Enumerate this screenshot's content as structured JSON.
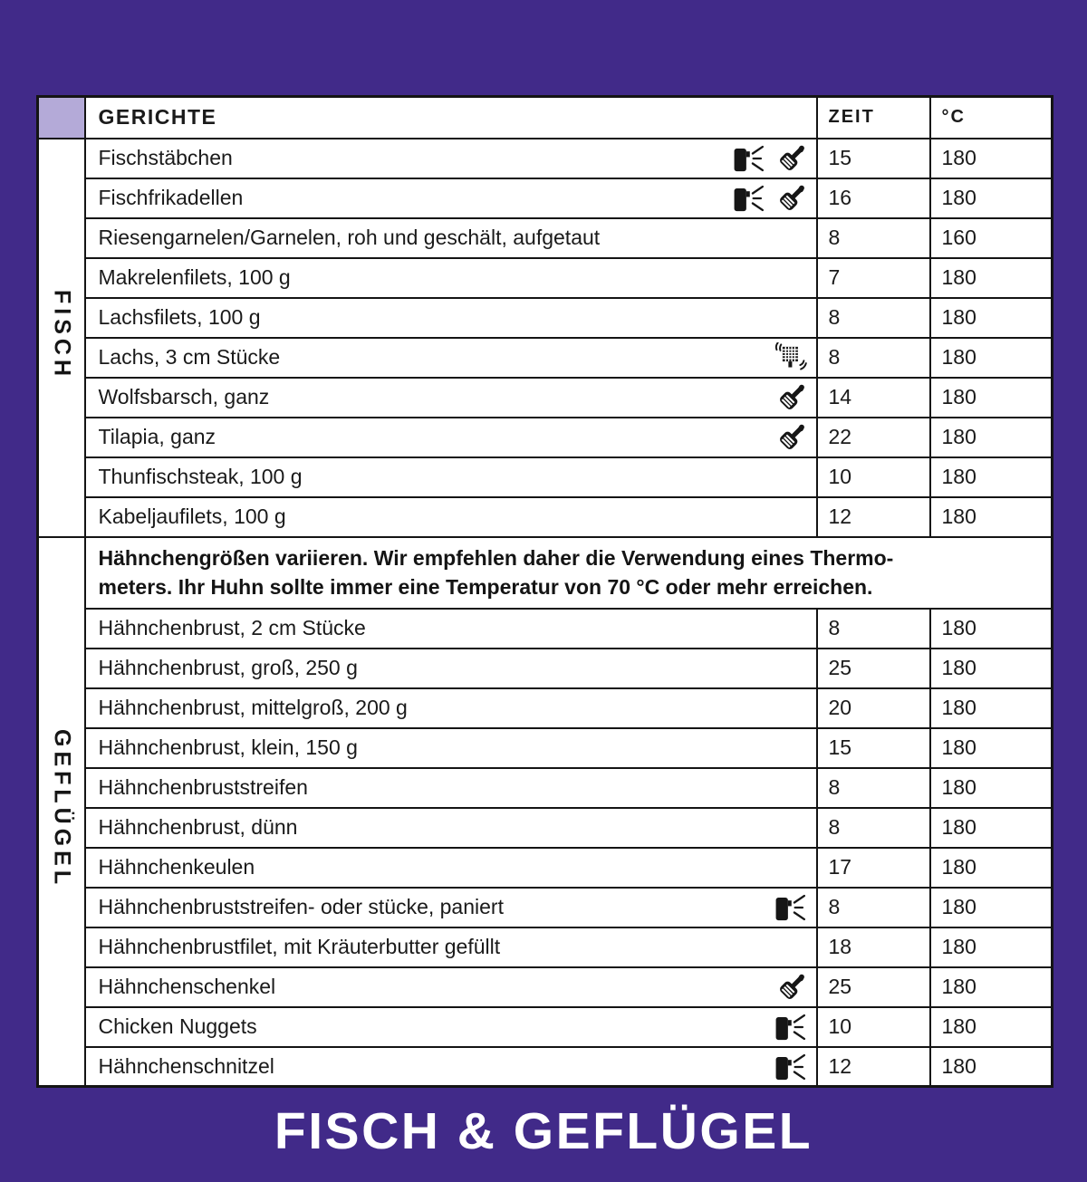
{
  "page": {
    "background_color": "#412a89",
    "title": "FISCH & GEFLÜGEL",
    "title_color": "#ffffff"
  },
  "table": {
    "border_color": "#141414",
    "header_bg": "#b4aad8",
    "row_bg": "#ffffff",
    "headers": {
      "dishes": "GERICHTE",
      "time": "ZEIT",
      "temp": "°C"
    },
    "sections": [
      {
        "label": "FISCH",
        "rows": [
          {
            "dish": "Fischstäbchen",
            "icons": [
              "oil-spray-icon",
              "spatula-icon"
            ],
            "time": "15",
            "temp": "180"
          },
          {
            "dish": "Fischfrikadellen",
            "icons": [
              "oil-spray-icon",
              "spatula-icon"
            ],
            "time": "16",
            "temp": "180"
          },
          {
            "dish": "Riesengarnelen/Garnelen, roh und geschält, aufgetaut",
            "icons": [],
            "time": "8",
            "temp": "160"
          },
          {
            "dish": "Makrelenfilets, 100 g",
            "icons": [],
            "time": "7",
            "temp": "180"
          },
          {
            "dish": "Lachsfilets, 100 g",
            "icons": [],
            "time": "8",
            "temp": "180"
          },
          {
            "dish": "Lachs, 3 cm Stücke",
            "icons": [
              "shake-icon"
            ],
            "time": "8",
            "temp": "180"
          },
          {
            "dish": "Wolfsbarsch, ganz",
            "icons": [
              "spatula-icon"
            ],
            "time": "14",
            "temp": "180"
          },
          {
            "dish": "Tilapia, ganz",
            "icons": [
              "spatula-icon"
            ],
            "time": "22",
            "temp": "180"
          },
          {
            "dish": "Thunfischsteak, 100 g",
            "icons": [],
            "time": "10",
            "temp": "180"
          },
          {
            "dish": "Kabeljaufilets, 100 g",
            "icons": [],
            "time": "12",
            "temp": "180"
          }
        ]
      },
      {
        "label": "GEFLÜGEL",
        "note_line1": "Hähnchengrößen variieren. Wir empfehlen daher die Verwendung eines Thermo-",
        "note_line2": "meters. Ihr Huhn sollte immer eine Temperatur von 70 °C oder mehr erreichen.",
        "rows": [
          {
            "dish": "Hähnchenbrust, 2 cm Stücke",
            "icons": [],
            "time": "8",
            "temp": "180"
          },
          {
            "dish": "Hähnchenbrust, groß, 250 g",
            "icons": [],
            "time": "25",
            "temp": "180"
          },
          {
            "dish": "Hähnchenbrust, mittelgroß, 200 g",
            "icons": [],
            "time": "20",
            "temp": "180"
          },
          {
            "dish": "Hähnchenbrust, klein, 150 g",
            "icons": [],
            "time": "15",
            "temp": "180"
          },
          {
            "dish": "Hähnchenbruststreifen",
            "icons": [],
            "time": "8",
            "temp": "180"
          },
          {
            "dish": "Hähnchenbrust, dünn",
            "icons": [],
            "time": "8",
            "temp": "180"
          },
          {
            "dish": "Hähnchenkeulen",
            "icons": [],
            "time": "17",
            "temp": "180"
          },
          {
            "dish": "Hähnchenbruststreifen- oder stücke, paniert",
            "icons": [
              "oil-spray-icon"
            ],
            "time": "8",
            "temp": "180"
          },
          {
            "dish": "Hähnchenbrustfilet, mit Kräuterbutter gefüllt",
            "icons": [],
            "time": "18",
            "temp": "180"
          },
          {
            "dish": "Hähnchenschenkel",
            "icons": [
              "spatula-icon"
            ],
            "time": "25",
            "temp": "180"
          },
          {
            "dish": "Chicken Nuggets",
            "icons": [
              "oil-spray-icon"
            ],
            "time": "10",
            "temp": "180"
          },
          {
            "dish": "Hähnchenschnitzel",
            "icons": [
              "oil-spray-icon"
            ],
            "time": "12",
            "temp": "180"
          }
        ]
      }
    ]
  }
}
